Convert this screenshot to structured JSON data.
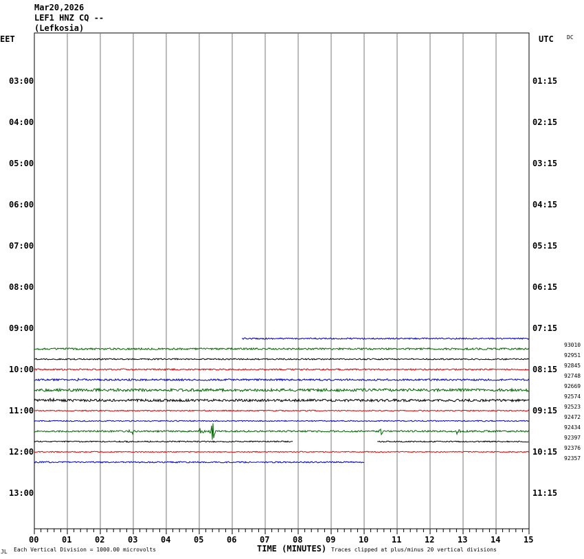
{
  "header": {
    "date": "Mar20,2026",
    "station": "LEF1 HNZ CQ --",
    "location": "(Lefkosia)"
  },
  "left_zone": "EET",
  "right_zone": "UTC",
  "dc_label": "DC",
  "footer": {
    "vertical_division": "Each Vertical Division = 1000.00 microvolts",
    "xlabel": "TIME (MINUTES)",
    "clip_note": "Traces clipped at plus/minus 20 vertical divisions",
    "corner_mark": "JL"
  },
  "chart_data": {
    "type": "line",
    "title": "LEF1 HNZ CQ --",
    "xlabel": "TIME (MINUTES)",
    "xlim": [
      0,
      15
    ],
    "x_ticks": [
      "00",
      "01",
      "02",
      "03",
      "04",
      "05",
      "06",
      "07",
      "08",
      "09",
      "10",
      "11",
      "12",
      "13",
      "14",
      "15"
    ],
    "row_minutes": 15,
    "grid": true,
    "left_time_labels": [
      "03:00",
      "04:00",
      "05:00",
      "06:00",
      "07:00",
      "08:00",
      "09:00",
      "10:00",
      "11:00",
      "12:00",
      "13:00"
    ],
    "right_time_labels": [
      "01:15",
      "02:15",
      "03:15",
      "04:15",
      "05:15",
      "06:15",
      "07:15",
      "08:15",
      "09:15",
      "10:15",
      "11:15"
    ],
    "series": [
      {
        "row": 7.25,
        "color": "#0000c0",
        "x_start": 6.3,
        "x_end": 15,
        "count": "93010",
        "amp": 1.0
      },
      {
        "row": 7.5,
        "color": "#006400",
        "x_start": 0,
        "x_end": 15,
        "count": "92951",
        "amp": 1.3
      },
      {
        "row": 7.75,
        "color": "#000000",
        "x_start": 0,
        "x_end": 15,
        "count": "92845",
        "amp": 1.0
      },
      {
        "row": 8.0,
        "color": "#e00000",
        "x_start": 0,
        "x_end": 15,
        "count": "92748",
        "amp": 1.1
      },
      {
        "row": 8.25,
        "color": "#0000c0",
        "x_start": 0,
        "x_end": 15,
        "count": "92669",
        "amp": 1.3
      },
      {
        "row": 8.5,
        "color": "#006400",
        "x_start": 0,
        "x_end": 15,
        "count": "92574",
        "amp": 2.0
      },
      {
        "row": 8.75,
        "color": "#000000",
        "x_start": 0,
        "x_end": 15,
        "count": "92523",
        "amp": 1.8
      },
      {
        "row": 9.0,
        "color": "#e00000",
        "x_start": 0,
        "x_end": 15,
        "count": "92472",
        "amp": 0.8
      },
      {
        "row": 9.25,
        "color": "#0000c0",
        "x_start": 0,
        "x_end": 15,
        "count": "92434",
        "amp": 0.8
      },
      {
        "row": 9.5,
        "color": "#006400",
        "x_start": 0,
        "x_end": 15,
        "count": "92397",
        "amp": 1.2
      },
      {
        "row": 9.75,
        "color": "#000000",
        "x_start": 0,
        "x_end": 7.85,
        "count": "92376",
        "amp": 0.9
      },
      {
        "row": 9.75,
        "color": "#000000",
        "x_start": 10.4,
        "x_end": 15,
        "count": "",
        "amp": 0.9
      },
      {
        "row": 10.0,
        "color": "#e00000",
        "x_start": 0,
        "x_end": 15,
        "count": "92357",
        "amp": 0.7
      },
      {
        "row": 10.25,
        "color": "#0000c0",
        "x_start": 0,
        "x_end": 10,
        "count": "",
        "amp": 1.0
      }
    ],
    "events": [
      {
        "row": 9.5,
        "x": 2.95,
        "amp": 6
      },
      {
        "row": 9.5,
        "x": 5.05,
        "amp": 6
      },
      {
        "row": 9.5,
        "x": 5.42,
        "amp": 14
      },
      {
        "row": 9.5,
        "x": 10.5,
        "amp": 7
      },
      {
        "row": 9.5,
        "x": 12.85,
        "amp": 5
      },
      {
        "row": 8.25,
        "x": 1.3,
        "amp": 4
      },
      {
        "row": 8.75,
        "x": 0.5,
        "amp": 4
      }
    ]
  }
}
